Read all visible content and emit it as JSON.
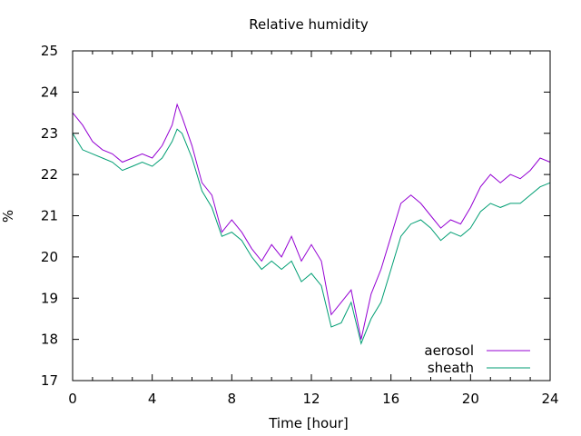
{
  "chart_data": {
    "type": "line",
    "title": "Relative humidity",
    "xlabel": "Time [hour]",
    "ylabel": "%",
    "xlim": [
      0,
      24
    ],
    "ylim": [
      17,
      25
    ],
    "x_ticks": [
      0,
      4,
      8,
      12,
      16,
      20,
      24
    ],
    "y_ticks": [
      17,
      18,
      19,
      20,
      21,
      22,
      23,
      24,
      25
    ],
    "grid": false,
    "legend_position": "bottom-right",
    "series": [
      {
        "name": "aerosol",
        "color": "#9400d3",
        "x": [
          0.0,
          0.5,
          1.0,
          1.5,
          2.0,
          2.5,
          3.0,
          3.5,
          4.0,
          4.5,
          5.0,
          5.25,
          5.5,
          6.0,
          6.5,
          7.0,
          7.5,
          8.0,
          8.5,
          9.0,
          9.5,
          10.0,
          10.5,
          11.0,
          11.5,
          12.0,
          12.5,
          13.0,
          13.5,
          14.0,
          14.5,
          15.0,
          15.5,
          16.0,
          16.5,
          17.0,
          17.5,
          18.0,
          18.5,
          19.0,
          19.5,
          20.0,
          20.5,
          21.0,
          21.5,
          22.0,
          22.5,
          23.0,
          23.5,
          24.0
        ],
        "y": [
          23.5,
          23.2,
          22.8,
          22.6,
          22.5,
          22.3,
          22.4,
          22.5,
          22.4,
          22.7,
          23.2,
          23.7,
          23.4,
          22.7,
          21.8,
          21.5,
          20.6,
          20.9,
          20.6,
          20.2,
          19.9,
          20.3,
          20.0,
          20.5,
          19.9,
          20.3,
          19.9,
          18.6,
          18.9,
          19.2,
          18.0,
          19.1,
          19.7,
          20.5,
          21.3,
          21.5,
          21.3,
          21.0,
          20.7,
          20.9,
          20.8,
          21.2,
          21.7,
          22.0,
          21.8,
          22.0,
          21.9,
          22.1,
          22.4,
          22.3
        ]
      },
      {
        "name": "sheath",
        "color": "#009e73",
        "x": [
          0.0,
          0.5,
          1.0,
          1.5,
          2.0,
          2.5,
          3.0,
          3.5,
          4.0,
          4.5,
          5.0,
          5.25,
          5.5,
          6.0,
          6.5,
          7.0,
          7.5,
          8.0,
          8.5,
          9.0,
          9.5,
          10.0,
          10.5,
          11.0,
          11.5,
          12.0,
          12.5,
          13.0,
          13.5,
          14.0,
          14.5,
          15.0,
          15.5,
          16.0,
          16.5,
          17.0,
          17.5,
          18.0,
          18.5,
          19.0,
          19.5,
          20.0,
          20.5,
          21.0,
          21.5,
          22.0,
          22.5,
          23.0,
          23.5,
          24.0
        ],
        "y": [
          23.0,
          22.6,
          22.5,
          22.4,
          22.3,
          22.1,
          22.2,
          22.3,
          22.2,
          22.4,
          22.8,
          23.1,
          23.0,
          22.4,
          21.6,
          21.2,
          20.5,
          20.6,
          20.4,
          20.0,
          19.7,
          19.9,
          19.7,
          19.9,
          19.4,
          19.6,
          19.3,
          18.3,
          18.4,
          18.9,
          17.9,
          18.5,
          18.9,
          19.7,
          20.5,
          20.8,
          20.9,
          20.7,
          20.4,
          20.6,
          20.5,
          20.7,
          21.1,
          21.3,
          21.2,
          21.3,
          21.3,
          21.5,
          21.7,
          21.8
        ]
      }
    ]
  }
}
